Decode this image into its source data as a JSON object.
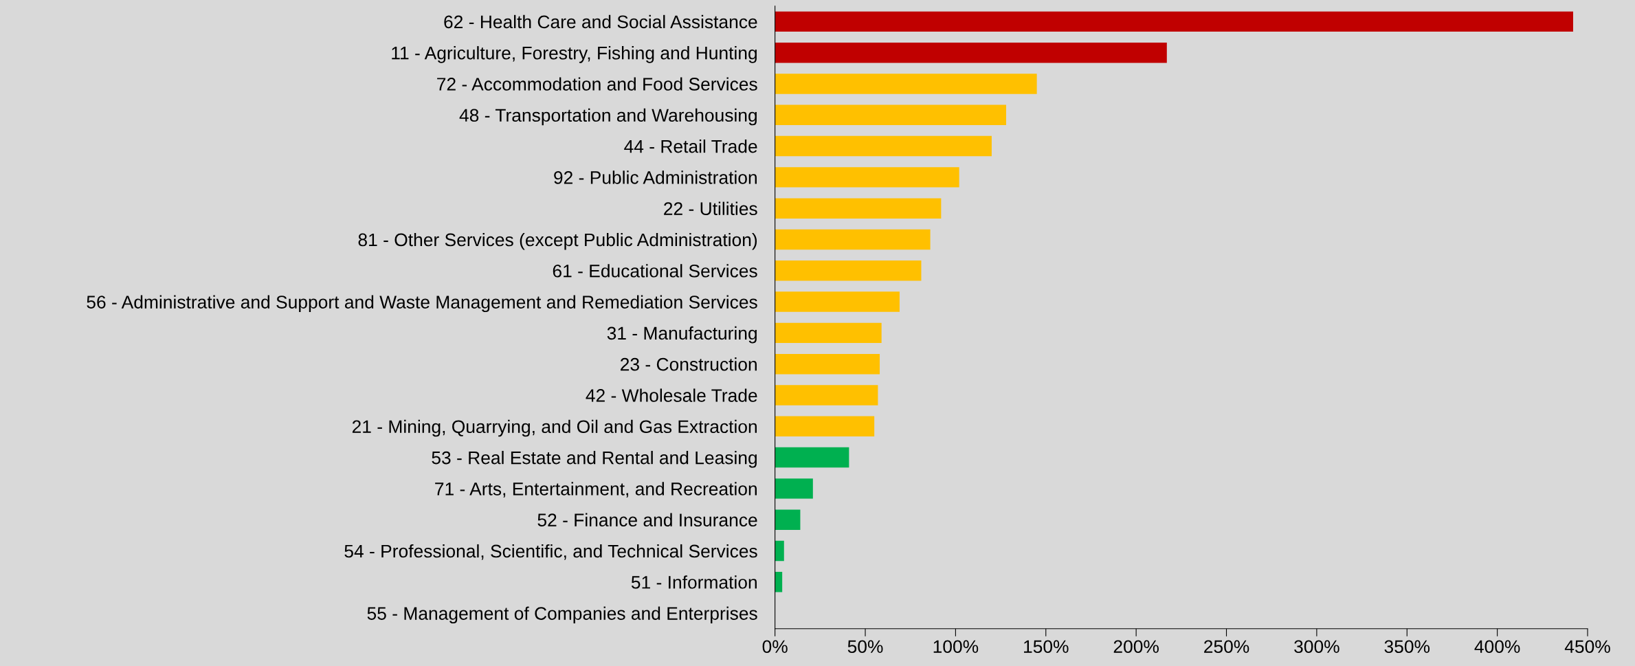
{
  "chart_data": {
    "type": "bar",
    "orientation": "horizontal",
    "categories": [
      "62 - Health Care and Social Assistance",
      "11 - Agriculture, Forestry, Fishing and Hunting",
      "72 - Accommodation and Food Services",
      "48 - Transportation and Warehousing",
      "44 - Retail Trade",
      "92 - Public Administration",
      "22 - Utilities",
      "81 - Other Services (except Public Administration)",
      "61 - Educational Services",
      "56 - Administrative and Support and Waste Management and Remediation Services",
      "31 - Manufacturing",
      "23 - Construction",
      "42 - Wholesale Trade",
      "21 - Mining, Quarrying, and Oil and Gas Extraction",
      "53 - Real Estate and Rental and Leasing",
      "71 - Arts, Entertainment, and Recreation",
      "52 - Finance and Insurance",
      "54 - Professional, Scientific, and Technical Services",
      "51 - Information",
      "55 - Management of Companies and Enterprises"
    ],
    "values": [
      442,
      217,
      145,
      128,
      120,
      102,
      92,
      86,
      81,
      69,
      59,
      58,
      57,
      55,
      41,
      21,
      14,
      5,
      4,
      0
    ],
    "colors": [
      "#c00000",
      "#c00000",
      "#ffc000",
      "#ffc000",
      "#ffc000",
      "#ffc000",
      "#ffc000",
      "#ffc000",
      "#ffc000",
      "#ffc000",
      "#ffc000",
      "#ffc000",
      "#ffc000",
      "#ffc000",
      "#00b050",
      "#00b050",
      "#00b050",
      "#00b050",
      "#00b050",
      "#00b050"
    ],
    "xlim": [
      0,
      450
    ],
    "xticks": [
      {
        "value": 0,
        "label": "0%"
      },
      {
        "value": 50,
        "label": "50%"
      },
      {
        "value": 100,
        "label": "100%"
      },
      {
        "value": 150,
        "label": "150%"
      },
      {
        "value": 200,
        "label": "200%"
      },
      {
        "value": 250,
        "label": "250%"
      },
      {
        "value": 300,
        "label": "300%"
      },
      {
        "value": 350,
        "label": "350%"
      },
      {
        "value": 400,
        "label": "400%"
      },
      {
        "value": 450,
        "label": "450%"
      }
    ],
    "grid": false,
    "legend": false
  }
}
